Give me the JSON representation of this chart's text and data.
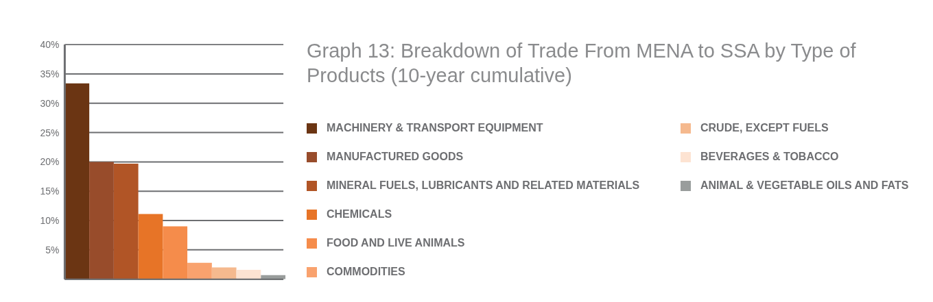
{
  "chart_data": {
    "type": "bar",
    "title": "Graph 13: Breakdown of Trade From MENA to SSA by Type of Products (10-year cumulative)",
    "categories": [
      null
    ],
    "series": [
      {
        "name": "MACHINERY & TRANSPORT EQUIPMENT",
        "color": "#6b3513",
        "values": [
          33.4
        ]
      },
      {
        "name": "MANUFACTURED GOODS",
        "color": "#984c2b",
        "values": [
          20.0
        ]
      },
      {
        "name": "MINERAL FUELS, LUBRICANTS AND RELATED MATERIALS",
        "color": "#b15526",
        "values": [
          19.7
        ]
      },
      {
        "name": "CHEMICALS",
        "color": "#e77427",
        "values": [
          11.1
        ]
      },
      {
        "name": "FOOD AND LIVE ANIMALS",
        "color": "#f58c4b",
        "values": [
          9.0
        ]
      },
      {
        "name": "COMMODITIES",
        "color": "#f9a26e",
        "values": [
          2.8
        ]
      },
      {
        "name": "CRUDE, EXCEPT FUELS",
        "color": "#f5b98e",
        "values": [
          2.0
        ]
      },
      {
        "name": "BEVERAGES & TOBACCO",
        "color": "#fde3d2",
        "values": [
          1.6
        ]
      },
      {
        "name": "ANIMAL & VEGETABLE OILS AND FATS",
        "color": "#999d9c",
        "values": [
          0.7
        ]
      }
    ],
    "ylim": [
      0,
      40
    ],
    "yticks": [
      {
        "value": 5,
        "label": "5%"
      },
      {
        "value": 10,
        "label": "10%"
      },
      {
        "value": 15,
        "label": "15%"
      },
      {
        "value": 20,
        "label": "20%"
      },
      {
        "value": 25,
        "label": "25%"
      },
      {
        "value": 30,
        "label": "30%"
      },
      {
        "value": 35,
        "label": "35%"
      },
      {
        "value": 40,
        "label": "40%"
      }
    ],
    "grid": "y",
    "legend": "right"
  }
}
